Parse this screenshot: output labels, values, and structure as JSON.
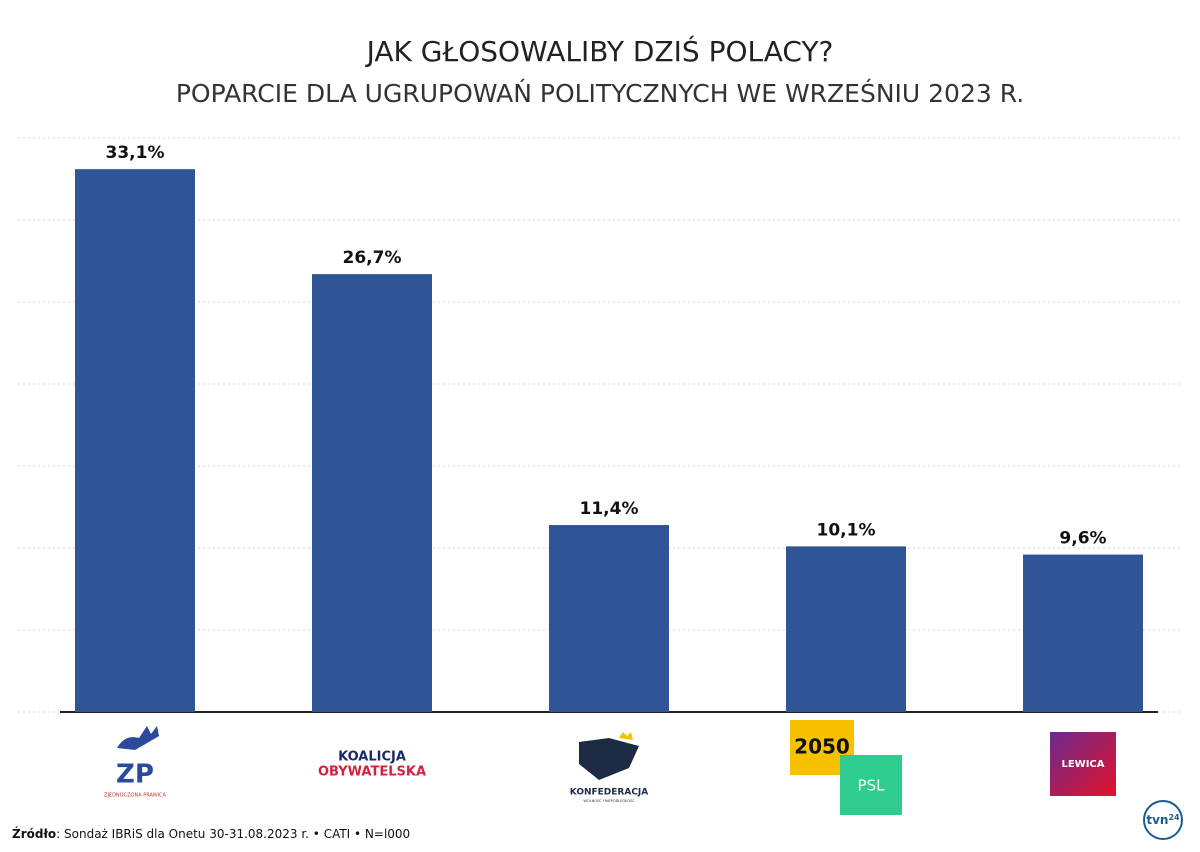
{
  "chart_data": {
    "type": "bar",
    "title": "JAK GŁOSOWALIBY DZIŚ POLACY?",
    "subtitle": "POPARCIE DLA UGRUPOWAŃ POLITYCZNYCH WE WRZEŚNIU 2023 R.",
    "categories": [
      [
        "ZP",
        "ZJEDNOCZONA PRAWICA"
      ],
      [
        "KOALICJA",
        "OBYWATELSKA"
      ],
      [
        "KONFEDERACJA",
        "WOLNOŚĆ I NIEPODLEGŁOŚĆ"
      ],
      [
        "2050",
        "PSL"
      ],
      [
        "LEWICA"
      ]
    ],
    "values": [
      33.1,
      26.7,
      11.4,
      10.1,
      9.6
    ],
    "value_labels": [
      "33,1%",
      "26,7%",
      "11,4%",
      "10,1%",
      "9,6%"
    ],
    "color": "#2f5597",
    "ylim": [
      0,
      35
    ],
    "yticks": [
      0,
      5,
      10,
      15,
      20,
      25,
      30,
      35
    ],
    "grid": true,
    "source_label": "Źródło",
    "source": ": Sondaż IBRiS dla Onetu 30-31.08.2023 r. • CATI • N=l000",
    "logo": [
      "tvn",
      "24"
    ]
  }
}
